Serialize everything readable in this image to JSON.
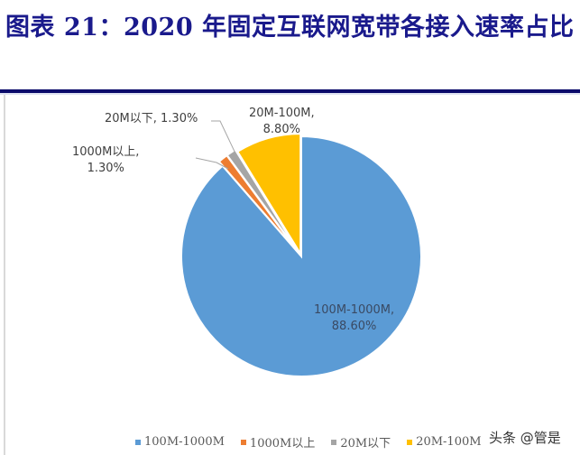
{
  "header": {
    "title": "图表 21：2020 年固定互联网宽带各接入速率占比"
  },
  "chart_data": {
    "type": "pie",
    "title": "图表 21：2020 年固定互联网宽带各接入速率占比",
    "categories": [
      "100M-1000M",
      "1000M以上",
      "20M以下",
      "20M-100M"
    ],
    "values": [
      88.6,
      1.3,
      1.3,
      8.8
    ],
    "unit": "%",
    "colors": [
      "#5b9bd5",
      "#ed7d31",
      "#a5a5a5",
      "#ffc000"
    ],
    "data_labels": [
      {
        "line1": "100M-1000M,",
        "line2": "88.60%"
      },
      {
        "line1": "1000M以上,",
        "line2": "1.30%"
      },
      {
        "line1": "20M以下, 1.30%",
        "line2": ""
      },
      {
        "line1": "20M-100M,",
        "line2": "8.80%"
      }
    ],
    "legend_position": "bottom",
    "start_angle": "12 o'clock, clockwise"
  },
  "legend": {
    "items": [
      {
        "label": "100M-1000M",
        "color": "#5b9bd5"
      },
      {
        "label": "1000M以上",
        "color": "#ed7d31"
      },
      {
        "label": "20M以下",
        "color": "#a5a5a5"
      },
      {
        "label": "20M-100M",
        "color": "#ffc000"
      }
    ]
  },
  "watermark": "头条 @管是"
}
